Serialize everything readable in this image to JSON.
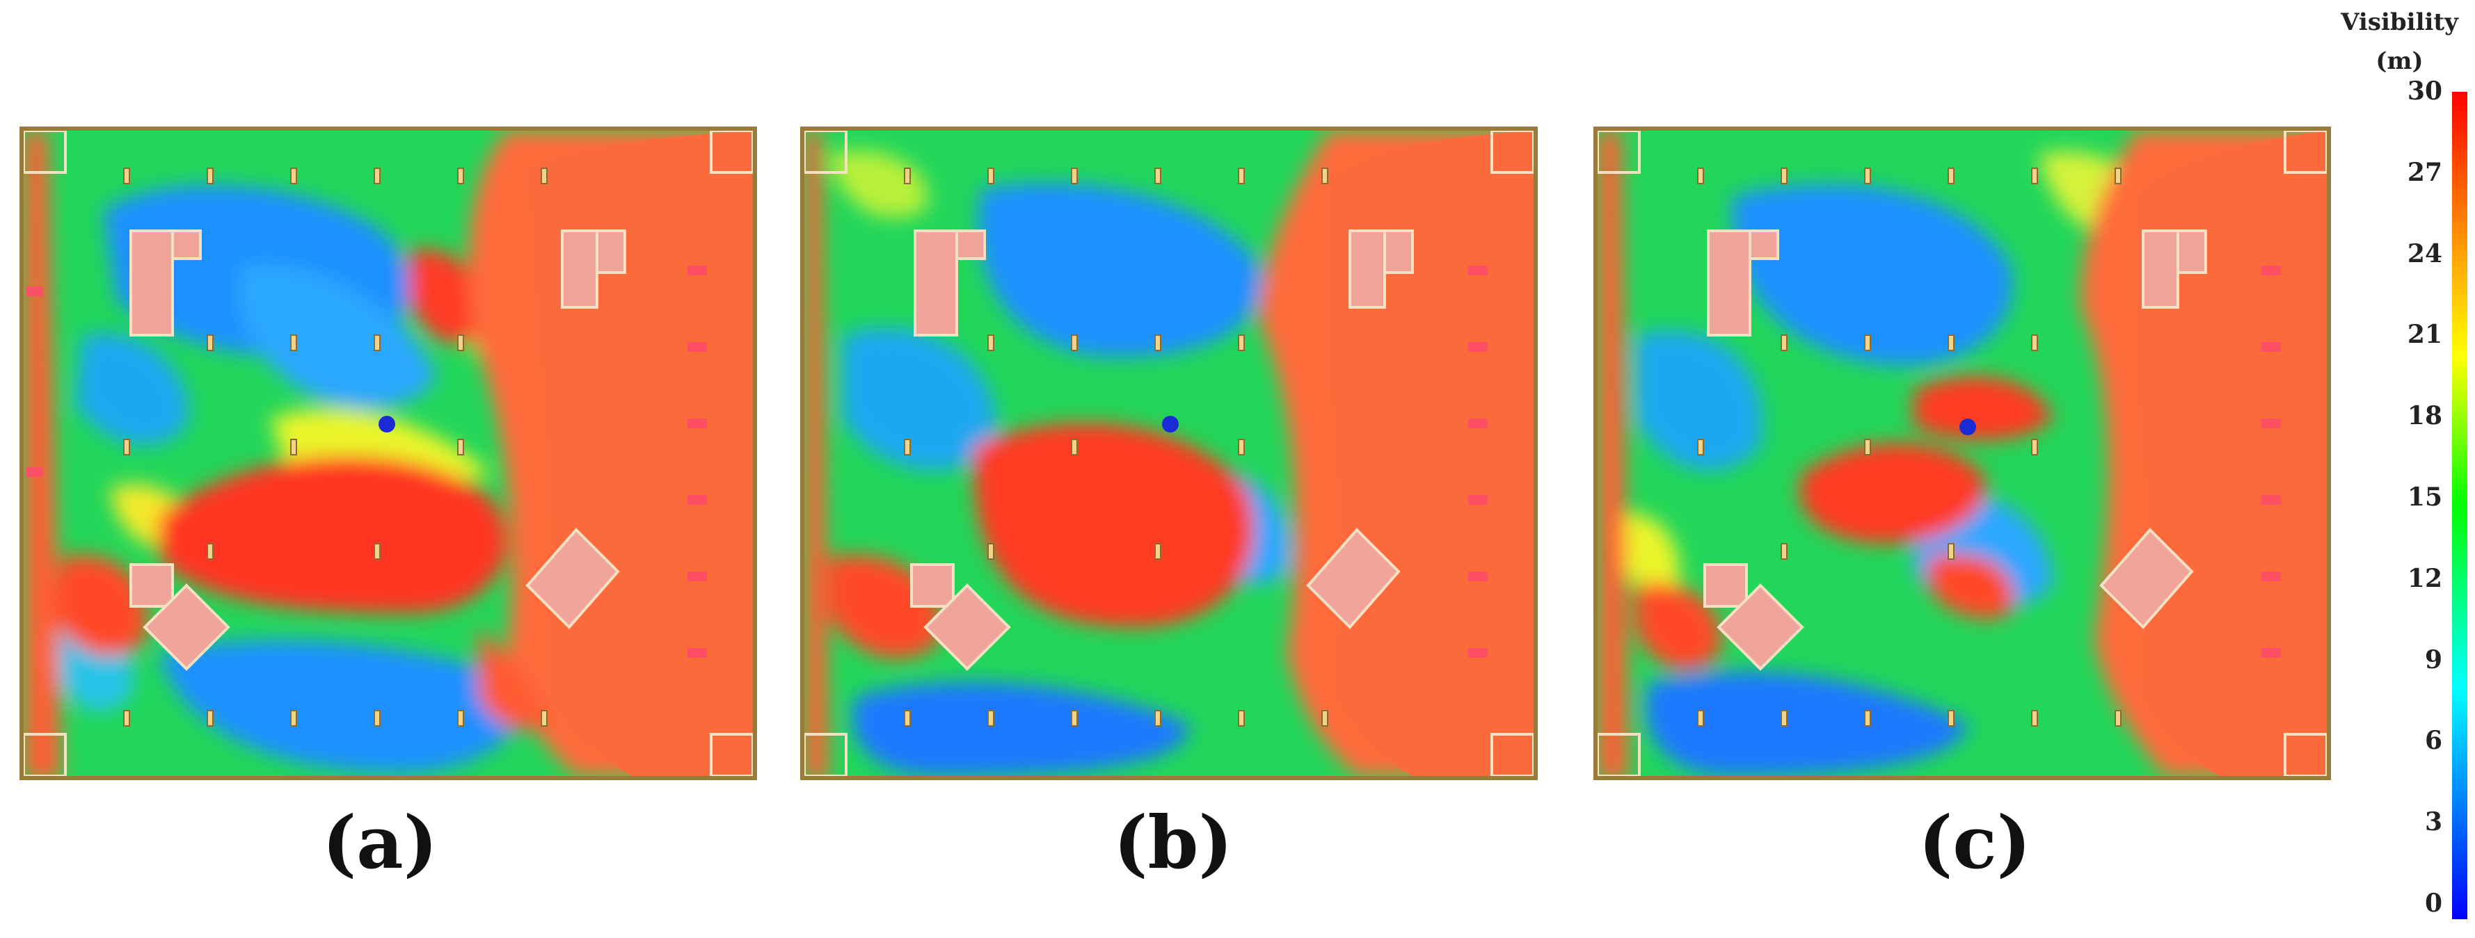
{
  "panels": [
    {
      "id": "a",
      "label": "(a)"
    },
    {
      "id": "b",
      "label": "(b)"
    },
    {
      "id": "c",
      "label": "(c)"
    }
  ],
  "colorbar": {
    "title_line1": "Visibility",
    "title_line2": "(m)",
    "ticks": [
      "30",
      "27",
      "24",
      "21",
      "18",
      "15",
      "12",
      "9",
      "6",
      "3",
      "0"
    ],
    "min": 0,
    "max": 30,
    "colors": [
      "#0000ff",
      "#00ffff",
      "#00ff00",
      "#ffff00",
      "#ffa500",
      "#ff0000"
    ]
  }
}
